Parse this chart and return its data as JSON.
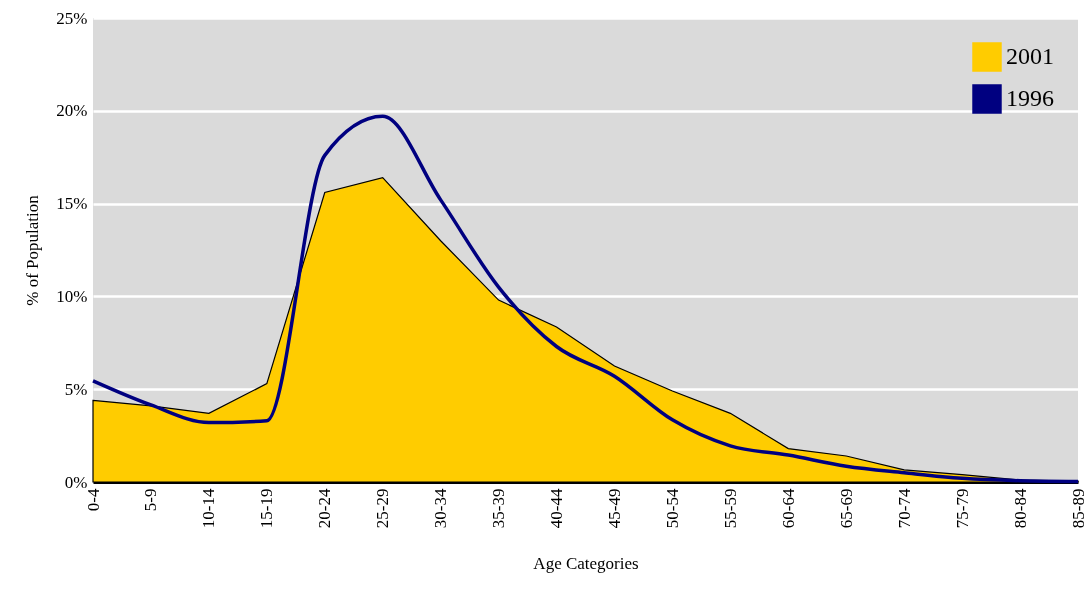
{
  "chart_data": {
    "type": "area",
    "xlabel": "Age Categories",
    "ylabel": "% of Population",
    "categories": [
      "0-4",
      "5-9",
      "10-14",
      "15-19",
      "20-24",
      "25-29",
      "30-34",
      "35-39",
      "40-44",
      "45-49",
      "50-54",
      "55-59",
      "60-64",
      "65-69",
      "70-74",
      "75-79",
      "80-84",
      "85-89"
    ],
    "series": [
      {
        "name": "2001",
        "color": "#ffcc00",
        "values": [
          4.4,
          4.1,
          3.7,
          5.3,
          15.6,
          16.4,
          13.0,
          9.8,
          8.35,
          6.25,
          4.9,
          3.7,
          1.8,
          1.4,
          0.65,
          0.4,
          0.1,
          0.05
        ]
      },
      {
        "name": "1996",
        "type": "line",
        "color": "#000080",
        "values": [
          5.45,
          4.15,
          3.2,
          3.3,
          17.6,
          19.7,
          15.2,
          10.5,
          7.3,
          5.7,
          3.35,
          1.95,
          1.45,
          0.85,
          0.5,
          0.2,
          0.07,
          0.03
        ]
      }
    ],
    "ylim": [
      0,
      25
    ],
    "yticks": [
      {
        "value": 0,
        "label": "0%"
      },
      {
        "value": 5,
        "label": "5%"
      },
      {
        "value": 10,
        "label": "10%"
      },
      {
        "value": 15,
        "label": "15%"
      },
      {
        "value": 20,
        "label": "20%"
      },
      {
        "value": 25,
        "label": "25%"
      }
    ],
    "grid": "y",
    "legend": "top right",
    "marker": "none",
    "line_style": "solid"
  }
}
